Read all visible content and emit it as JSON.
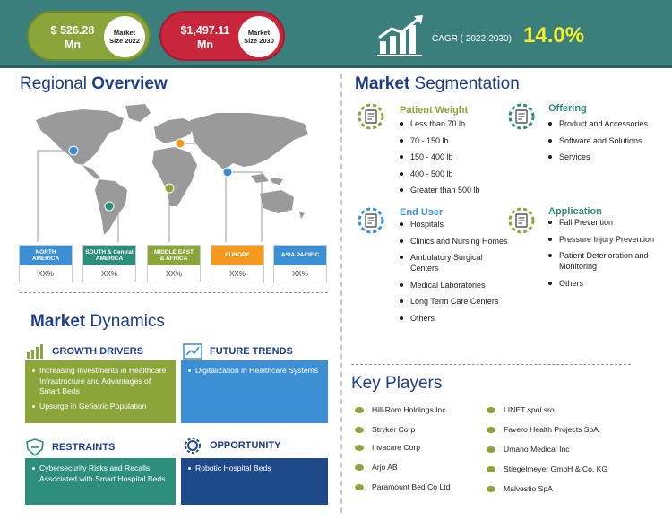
{
  "header": {
    "size_2022": {
      "value_line1": "$ 526.28",
      "value_line2": "Mn",
      "label_line1": "Market",
      "label_line2": "Size 2022"
    },
    "size_2030": {
      "value_line1": "$1,497.11",
      "value_line2": "Mn",
      "label_line1": "Market",
      "label_line2": "Size 2030"
    },
    "cagr_label": "CAGR ( 2022-2030)",
    "cagr_value": "14.0%"
  },
  "regional": {
    "title_a": "Regional ",
    "title_b": "Overview",
    "regions": [
      {
        "name_line1": "NORTH",
        "name_line2": "AMERICA",
        "value": "XX%",
        "color": "#3c8fd3"
      },
      {
        "name_line1": "SOUTH & Central",
        "name_line2": "AMERICA",
        "value": "XX%",
        "color": "#2d8f7a"
      },
      {
        "name_line1": "MIDDLE EAST",
        "name_line2": "& AFRICA",
        "value": "XX%",
        "color": "#8aa63a"
      },
      {
        "name_line1": "EUROPE",
        "name_line2": "",
        "value": "XX%",
        "color": "#f39a1e"
      },
      {
        "name_line1": "ASIA PACIFIC",
        "name_line2": "",
        "value": "XX%",
        "color": "#3c8fd3"
      }
    ]
  },
  "segmentation": {
    "title_a": "Market ",
    "title_b": "Segmentation",
    "patient_weight": {
      "title": "Patient Weight",
      "items": [
        "Less than 70 lb",
        "70 - 150 lb",
        "150 - 400 lb",
        "400 - 500 lb",
        "Greater than 500 lb"
      ]
    },
    "offering": {
      "title": "Offering",
      "items": [
        "Product and Accessories",
        "Software and Solutions",
        "Services"
      ]
    },
    "end_user": {
      "title": "End User",
      "items": [
        "Hospitals",
        "Clinics and Nursing Homes",
        "Ambulatory Surgical Centers",
        "Medical Laboratories",
        "Long Term Care Centers",
        "Others"
      ]
    },
    "application": {
      "title": "Application",
      "items": [
        "Fall Prevention",
        "Pressure Injury Prevention",
        "Patient Deterioration and Monitoring",
        "Others"
      ]
    }
  },
  "dynamics": {
    "title_a": "Market ",
    "title_b": "Dynamics",
    "growth_drivers": {
      "title": "GROWTH DRIVERS",
      "items": [
        "Increasing Investments in Healthcare Infrastructure and Advantages of Smart Beds",
        "Upsurge in Geriatric Population"
      ]
    },
    "future_trends": {
      "title": "FUTURE TRENDS",
      "items": [
        "Digitalization in Healthcare Systems"
      ]
    },
    "restraints": {
      "title": "RESTRAINTS",
      "items": [
        "Cybersecurity Risks and Recalls Associated with Smart Hospital Beds"
      ]
    },
    "opportunity": {
      "title": "OPPORTUNITY",
      "items": [
        "Robotic Hospital Beds"
      ]
    }
  },
  "key_players": {
    "title": "Key Players",
    "left": [
      "Hill-Rom Holdings Inc",
      "Stryker Corp",
      "Invacare Corp",
      "Arjo AB",
      "Paramount Bed Co Ltd"
    ],
    "right": [
      "LINET spol sro",
      "Favero Health Projects SpA",
      "Umano Medical Inc",
      "Stiegelmeyer GmbH & Co. KG",
      "Malvestio SpA"
    ]
  },
  "colors": {
    "header_bg": "#3b7f7d",
    "title_blue": "#1f3c88",
    "green": "#8aa63a",
    "red": "#c9263b",
    "blue": "#3c8fd3",
    "navy": "#1e4a8a",
    "teal": "#2d8f7a",
    "orange": "#f39a1e",
    "cagr_yellow": "#f6ee2a"
  }
}
